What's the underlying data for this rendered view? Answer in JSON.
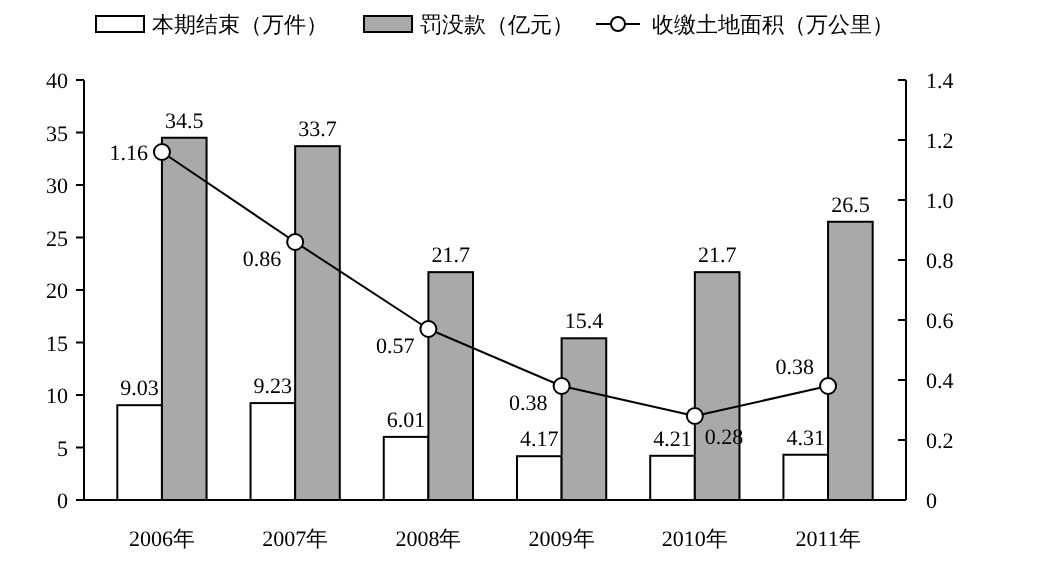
{
  "chart_data": {
    "type": "bar",
    "categories": [
      "2006年",
      "2007年",
      "2008年",
      "2009年",
      "2010年",
      "2011年"
    ],
    "series": [
      {
        "name": "本期结束（万件）",
        "color": "#ffffff",
        "values": [
          9.03,
          9.23,
          6.01,
          4.17,
          4.21,
          4.31
        ]
      },
      {
        "name": "罚没款（亿元）",
        "color": "#a9a9a9",
        "values": [
          34.5,
          33.7,
          21.7,
          15.4,
          21.7,
          26.5
        ]
      },
      {
        "name": "收缴土地面积（万公里）",
        "type": "line",
        "axis": "y2",
        "color": "#000000",
        "marker": "circle",
        "values": [
          1.16,
          0.86,
          0.57,
          0.38,
          0.28,
          0.38
        ]
      }
    ],
    "ylim": [
      0,
      40
    ],
    "yticks": [
      0,
      5,
      10,
      15,
      20,
      25,
      30,
      35,
      40
    ],
    "y2lim": [
      0,
      1.4
    ],
    "y2ticks": [
      0,
      {
        "value": 0.2,
        "label": "0.2"
      },
      {
        "value": 0.4,
        "label": "0.4"
      },
      {
        "value": 0.6,
        "label": "0.6"
      },
      {
        "value": 0.8,
        "label": "0.8"
      },
      {
        "value": 1.0,
        "label": "1.0"
      },
      {
        "value": 1.2,
        "label": "1.2"
      },
      {
        "value": 1.4,
        "label": "1.4"
      }
    ],
    "data_labels": true,
    "legend": "top",
    "grid": false
  }
}
